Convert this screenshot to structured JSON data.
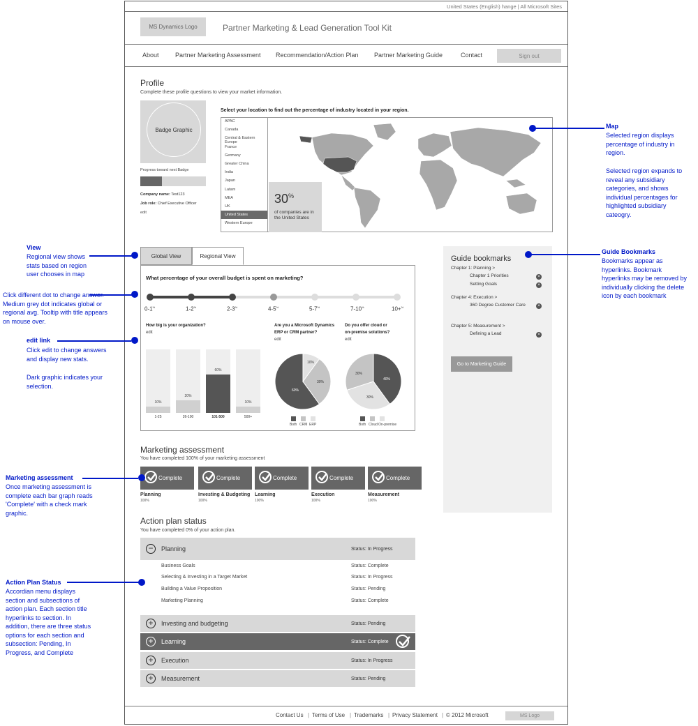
{
  "topbar": {
    "text": "United States (English) hange | All Microsoft Sites"
  },
  "header": {
    "logo_text": "MS Dynamics Logo",
    "site_title": "Partner Marketing & Lead Generation Tool Kit"
  },
  "nav": {
    "items": [
      "About",
      "Partner Marketing Assessment",
      "Recommendation/Action Plan",
      "Partner Marketing Guide",
      "Contact"
    ],
    "signout": "Sign out"
  },
  "profile": {
    "title": "Profile",
    "subtitle": "Complete these profile questions to view your market information.",
    "badge": "Badge Graphic",
    "progress_label": "Progress toward next Badge",
    "progress": 0.33,
    "company_label": "Company name:",
    "company_value": "Test123",
    "role_label": "Job role:",
    "role_value": "Chief Executive Officer",
    "edit": "edit"
  },
  "map": {
    "prompt": "Select your location to find out the percentage of industry located in your region.",
    "regions": [
      "APAC",
      "Canada",
      "Central & Eastern Europe",
      "France",
      "Germany",
      "Greater China",
      "India",
      "Japan",
      "Latam",
      "MEA",
      "UK",
      "United States",
      "Western Europe"
    ],
    "selected_region": "United States",
    "stat_value": "30",
    "stat_unit": "%",
    "stat_text": "of companies are in the United States"
  },
  "views": {
    "global": "Global View",
    "regional": "Regional View"
  },
  "budget": {
    "question": "What percentage of your overall budget is spent on marketing?",
    "labels": [
      "0-1",
      "1-2",
      "2-3",
      "4-5",
      "5-7",
      "7-10",
      "10+"
    ],
    "unit": "%"
  },
  "org_size": {
    "question": "How big is your organization?",
    "edit": "edit",
    "bars": [
      {
        "label": "1-25",
        "value": "10%",
        "pct": 10
      },
      {
        "label": "26-100",
        "value": "20%",
        "pct": 20
      },
      {
        "label": "101-500",
        "value": "60%",
        "pct": 60
      },
      {
        "label": "500+",
        "value": "10%",
        "pct": 10
      }
    ]
  },
  "partner_pie": {
    "question1": "Are you a Microsoft Dynamics",
    "question2": "ERP or CRM partner?",
    "edit": "edit",
    "labels": [
      "10%",
      "30%",
      "60%"
    ],
    "legend": [
      "Both",
      "CRM",
      "ERP"
    ]
  },
  "cloud_pie": {
    "question1": "Do you offer cloud or",
    "question2": "on-premise solutions?",
    "edit": "edit",
    "labels": [
      "30%",
      "40%",
      "30%"
    ],
    "legend": [
      "Both",
      "Cloud",
      "On-premise"
    ]
  },
  "assessment": {
    "title": "Marketing assessment",
    "subtitle": "You have completed 100% of your marketing assessment",
    "button_label": "Complete",
    "items": [
      {
        "label": "Planning",
        "pct": "100%"
      },
      {
        "label": "Investing & Budgeting",
        "pct": "100%"
      },
      {
        "label": "Learning",
        "pct": "100%"
      },
      {
        "label": "Execution",
        "pct": "100%"
      },
      {
        "label": "Measurement",
        "pct": "100%"
      }
    ]
  },
  "action_plan": {
    "title": "Action plan status",
    "subtitle": "You have completed 0% of your action plan.",
    "sections": [
      {
        "title": "Planning",
        "status": "Status: In Progress"
      },
      {
        "title": "Investing and budgeting",
        "status": "Status: Pending"
      },
      {
        "title": "Learning",
        "status": "Status: Complete"
      },
      {
        "title": "Execution",
        "status": "Status: In Progress"
      },
      {
        "title": "Measurement",
        "status": "Status: Pending"
      }
    ],
    "subsections": [
      {
        "title": "Business Goals",
        "status": "Status: Complete"
      },
      {
        "title": "Selecting & Investing in a Target Market",
        "status": "Status: In Progress"
      },
      {
        "title": "Building a Value Proposition",
        "status": "Status: Pending"
      },
      {
        "title": "Marketing Planning",
        "status": "Status: Complete"
      }
    ]
  },
  "bookmarks": {
    "title": "Guide bookmarks",
    "groups": [
      {
        "chapter": "Chapter 1: Planning  >",
        "items": [
          "Chapter 1 Priorities",
          "Setting Goals"
        ]
      },
      {
        "chapter": "Chapter 4: Execution  >",
        "items": [
          "360 Degree Customer Care"
        ]
      },
      {
        "chapter": "Chapter 5: Measurement  >",
        "items": [
          "Defining a Lead"
        ]
      }
    ],
    "button": "Go to Marketing Guide"
  },
  "footer": {
    "links": [
      "Contact Us",
      "Terms of Use",
      "Trademarks",
      "Privacy Statement"
    ],
    "copyright": "© 2012 Microsoft",
    "logo": "MS  Logo"
  },
  "annotations": {
    "map": {
      "title": "Map",
      "text1": "Selected region displays percentage of industry in region.",
      "text2": "Selected region expands to reveal any subsidiary categories, and shows individual percentages for highlighted subsidiary cateogry."
    },
    "view": {
      "title": "View",
      "text": "Regional view shows stats based on region user chooses in map"
    },
    "dots": {
      "text": "Click different dot to change answer. Medium grey dot indicates global or regional avg. Tooltip with title appears on mouse over."
    },
    "edit": {
      "title": "edit link",
      "text1": "Click edit to change answers and display new stats.",
      "text2": "Dark graphic indicates your selection."
    },
    "assessment": {
      "title": "Marketing assessment",
      "text": "Once marketing assessment is complete each bar graph reads 'Complete' with a check mark graphic."
    },
    "action": {
      "title": "Action Plan Status",
      "text": "Accordian menu displays section and subsections of action plan. Each section title hyperlinks to section. In addition, there are three status options for each section and subsection: Pending, In Progress, and Complete"
    },
    "bookmarks": {
      "title": "Guide Bookmarks",
      "text": "Bookmarks appear as hyperlinks.  Bookmark hyperlinks may be removed by individually clicking the delete icon by each bookmark"
    }
  },
  "colors": {
    "annotation": "#0018c8",
    "dark": "#666666",
    "light": "#d8d8d8",
    "selected": "#555555"
  }
}
